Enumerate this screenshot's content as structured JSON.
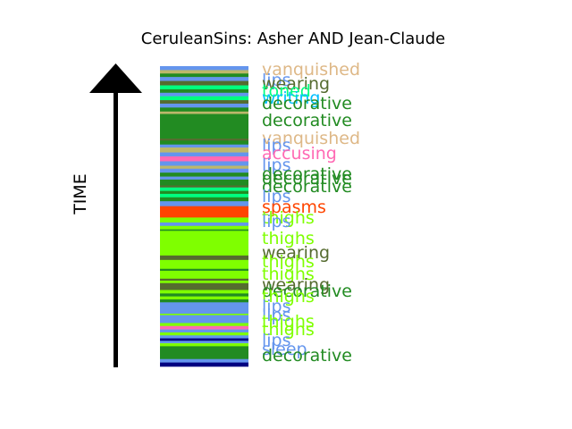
{
  "chart_data": {
    "type": "bar",
    "title": "CeruleanSins: Asher AND Jean-Claude",
    "ylabel": "TIME",
    "orientation": "stacked-timeline",
    "colors": {
      "cornflower": "#6495ed",
      "darkgreen": "#228b22",
      "lime": "#7fff00",
      "olive": "#556b2f",
      "spring": "#00ff7f",
      "tan": "#deb887",
      "pink": "#ff69b4",
      "orange": "#ff4500",
      "navy": "#000080",
      "sky": "#00bfff",
      "khaki": "#bdb76b"
    },
    "segments": [
      [
        "cornflower",
        0.8
      ],
      [
        "khaki",
        0.7
      ],
      [
        "darkgreen",
        0.7
      ],
      [
        "cornflower",
        0.8
      ],
      [
        "olive",
        0.9
      ],
      [
        "spring",
        0.8
      ],
      [
        "darkgreen",
        0.7
      ],
      [
        "cornflower",
        0.7
      ],
      [
        "spring",
        0.8
      ],
      [
        "olive",
        0.7
      ],
      [
        "cornflower",
        0.8
      ],
      [
        "darkgreen",
        0.8
      ],
      [
        "khaki",
        0.5
      ],
      [
        "darkgreen",
        5.0
      ],
      [
        "olive",
        0.4
      ],
      [
        "darkgreen",
        0.8
      ],
      [
        "cornflower",
        0.6
      ],
      [
        "khaki",
        1.0
      ],
      [
        "cornflower",
        0.8
      ],
      [
        "pink",
        1.0
      ],
      [
        "cornflower",
        0.9
      ],
      [
        "khaki",
        0.6
      ],
      [
        "cornflower",
        0.8
      ],
      [
        "darkgreen",
        0.8
      ],
      [
        "cornflower",
        0.6
      ],
      [
        "darkgreen",
        1.2
      ],
      [
        "olive",
        0.4
      ],
      [
        "spring",
        0.7
      ],
      [
        "darkgreen",
        0.6
      ],
      [
        "spring",
        0.7
      ],
      [
        "darkgreen",
        0.8
      ],
      [
        "cornflower",
        1.0
      ],
      [
        "orange",
        2.3
      ],
      [
        "lime",
        1.0
      ],
      [
        "cornflower",
        0.7
      ],
      [
        "lime",
        0.7
      ],
      [
        "darkgreen",
        0.3
      ],
      [
        "lime",
        5.0
      ],
      [
        "olive",
        0.9
      ],
      [
        "lime",
        1.8
      ],
      [
        "darkgreen",
        0.4
      ],
      [
        "lime",
        1.6
      ],
      [
        "olive",
        0.4
      ],
      [
        "lime",
        0.5
      ],
      [
        "olive",
        1.4
      ],
      [
        "lime",
        0.7
      ],
      [
        "darkgreen",
        0.6
      ],
      [
        "lime",
        0.6
      ],
      [
        "darkgreen",
        0.6
      ],
      [
        "cornflower",
        2.3
      ],
      [
        "lime",
        0.3
      ],
      [
        "cornflower",
        1.6
      ],
      [
        "lime",
        0.6
      ],
      [
        "pink",
        0.7
      ],
      [
        "cornflower",
        0.6
      ],
      [
        "lime",
        0.6
      ],
      [
        "cornflower",
        0.6
      ],
      [
        "navy",
        0.5
      ],
      [
        "cornflower",
        0.5
      ],
      [
        "lime",
        0.6
      ],
      [
        "darkgreen",
        2.6
      ],
      [
        "cornflower",
        0.7
      ],
      [
        "navy",
        0.8
      ]
    ],
    "labels": [
      {
        "text": "vanquished",
        "color": "tan"
      },
      {
        "text": "lips",
        "color": "cornflower"
      },
      {
        "text": "wearing",
        "color": "olive"
      },
      {
        "text": "toned",
        "color": "spring"
      },
      {
        "text": "writing",
        "color": "sky"
      },
      {
        "text": "decorative",
        "color": "darkgreen"
      },
      {
        "text": "decorative",
        "color": "darkgreen"
      },
      {
        "text": "vanquished",
        "color": "tan"
      },
      {
        "text": "lips",
        "color": "cornflower"
      },
      {
        "text": "accusing",
        "color": "pink"
      },
      {
        "text": "lips",
        "color": "cornflower"
      },
      {
        "text": "decorative",
        "color": "darkgreen"
      },
      {
        "text": "decorative",
        "color": "darkgreen"
      },
      {
        "text": "decorative",
        "color": "darkgreen"
      },
      {
        "text": "lips",
        "color": "cornflower"
      },
      {
        "text": "spasms",
        "color": "orange"
      },
      {
        "text": "thighs",
        "color": "lime"
      },
      {
        "text": "lips",
        "color": "cornflower"
      },
      {
        "text": "thighs",
        "color": "lime"
      },
      {
        "text": "wearing",
        "color": "olive"
      },
      {
        "text": "thighs",
        "color": "lime"
      },
      {
        "text": "thighs",
        "color": "lime"
      },
      {
        "text": "wearing",
        "color": "olive"
      },
      {
        "text": "decorative",
        "color": "darkgreen"
      },
      {
        "text": "thighs",
        "color": "lime"
      },
      {
        "text": "lips",
        "color": "cornflower"
      },
      {
        "text": "lips",
        "color": "cornflower"
      },
      {
        "text": "thighs",
        "color": "lime"
      },
      {
        "text": "thighs",
        "color": "lime"
      },
      {
        "text": "lips",
        "color": "cornflower"
      },
      {
        "text": "sleep",
        "color": "cornflower"
      },
      {
        "text": "decorative",
        "color": "darkgreen"
      }
    ]
  }
}
